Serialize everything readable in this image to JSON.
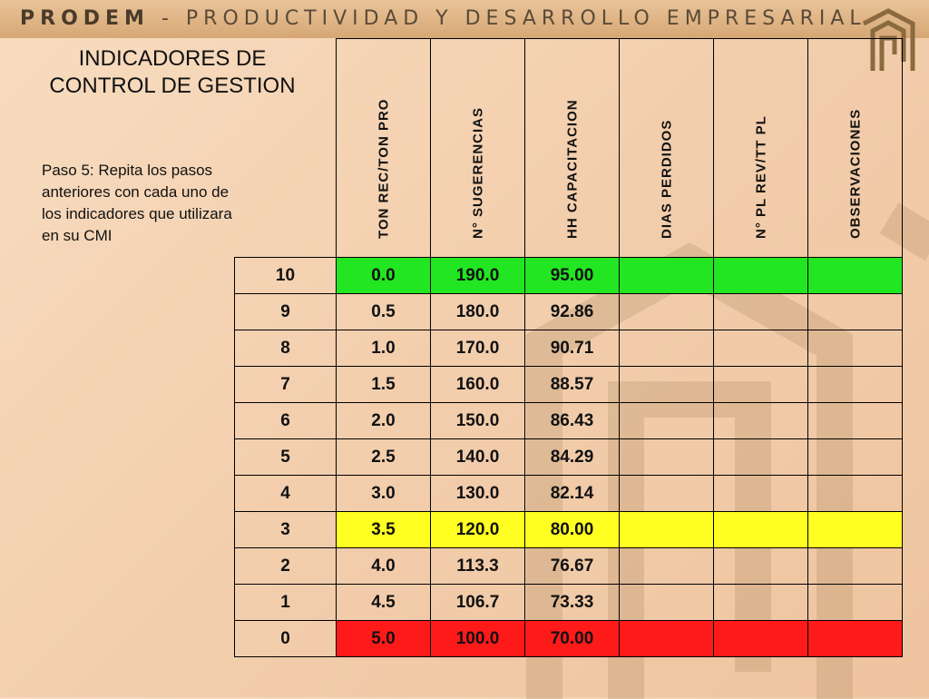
{
  "header": {
    "brand": "PRODEM",
    "separator": "-",
    "tagline": "PRODUCTIVIDAD Y DESARROLLO EMPRESARIAL"
  },
  "title": [
    "INDICADORES DE",
    "CONTROL DE GESTION"
  ],
  "instruction": [
    "Paso 5: Repita los pasos",
    "anteriores con cada uno de",
    "los indicadores que utilizara",
    "en su CMI"
  ],
  "table": {
    "columns": [
      "TON REC/TON PRO",
      "N° SUGERENCIAS",
      "HH CAPACITACION",
      "DIAS PERDIDOS",
      "N° PL REV/TT PL",
      "OBSERVACIONES"
    ],
    "rows": [
      {
        "level": "10",
        "cells": [
          "0.0",
          "190.0",
          "95.00",
          "",
          "",
          ""
        ],
        "status": "green"
      },
      {
        "level": "9",
        "cells": [
          "0.5",
          "180.0",
          "92.86",
          "",
          "",
          ""
        ],
        "status": "none"
      },
      {
        "level": "8",
        "cells": [
          "1.0",
          "170.0",
          "90.71",
          "",
          "",
          ""
        ],
        "status": "none"
      },
      {
        "level": "7",
        "cells": [
          "1.5",
          "160.0",
          "88.57",
          "",
          "",
          ""
        ],
        "status": "none"
      },
      {
        "level": "6",
        "cells": [
          "2.0",
          "150.0",
          "86.43",
          "",
          "",
          ""
        ],
        "status": "none"
      },
      {
        "level": "5",
        "cells": [
          "2.5",
          "140.0",
          "84.29",
          "",
          "",
          ""
        ],
        "status": "none"
      },
      {
        "level": "4",
        "cells": [
          "3.0",
          "130.0",
          "82.14",
          "",
          "",
          ""
        ],
        "status": "none"
      },
      {
        "level": "3",
        "cells": [
          "3.5",
          "120.0",
          "80.00",
          "",
          "",
          ""
        ],
        "status": "yellow"
      },
      {
        "level": "2",
        "cells": [
          "4.0",
          "113.3",
          "76.67",
          "",
          "",
          ""
        ],
        "status": "none"
      },
      {
        "level": "1",
        "cells": [
          "4.5",
          "106.7",
          "73.33",
          "",
          "",
          ""
        ],
        "status": "none"
      },
      {
        "level": "0",
        "cells": [
          "5.0",
          "100.0",
          "70.00",
          "",
          "",
          ""
        ],
        "status": "red"
      }
    ]
  },
  "colors": {
    "green": "#22e622",
    "yellow": "#ffff22",
    "red": "#ff1a1a"
  },
  "icons": {
    "logo": "prodem-logo-icon"
  }
}
